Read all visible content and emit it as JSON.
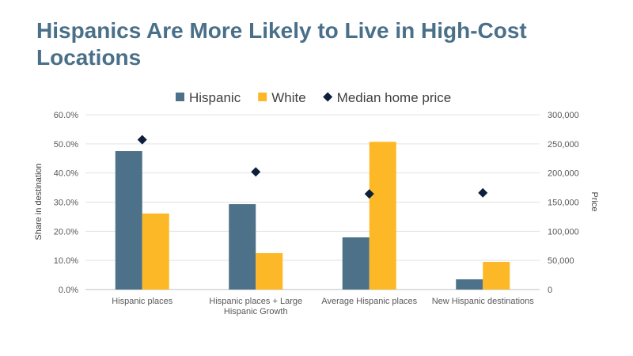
{
  "slide": {
    "title": "Hispanics Are More Likely to Live in High-Cost Locations"
  },
  "chart_data": {
    "type": "bar",
    "categories": [
      [
        "Hispanic places"
      ],
      [
        "Hispanic places + Large",
        "Hispanic Growth"
      ],
      [
        "Average Hispanic places"
      ],
      [
        "New Hispanic destinations"
      ]
    ],
    "series": [
      {
        "name": "Hispanic",
        "type": "bar",
        "axis": "left",
        "color": "#4c7189",
        "values": [
          0.475,
          0.293,
          0.179,
          0.035
        ]
      },
      {
        "name": "White",
        "type": "bar",
        "axis": "left",
        "color": "#fdb827",
        "values": [
          0.261,
          0.125,
          0.507,
          0.095
        ]
      },
      {
        "name": "Median home price",
        "type": "scatter",
        "marker": "diamond",
        "axis": "right",
        "color": "#0e1f3c",
        "values": [
          257000,
          202000,
          164000,
          166000
        ]
      }
    ],
    "ylabel": "Share in destination",
    "y2label": "Price",
    "ylim": [
      0,
      0.6
    ],
    "y2lim": [
      0,
      300000
    ],
    "yticks": [
      "0.0%",
      "10.0%",
      "20.0%",
      "30.0%",
      "40.0%",
      "50.0%",
      "60.0%"
    ],
    "y2ticks": [
      "0",
      "50,000",
      "100,000",
      "150,000",
      "200,000",
      "250,000",
      "300,000"
    ],
    "legend_position": "top",
    "grid": true
  }
}
